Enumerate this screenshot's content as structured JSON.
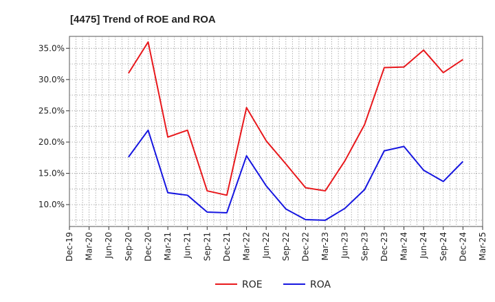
{
  "chart_data": {
    "type": "line",
    "title": "[4475]  Trend of ROE and ROA",
    "xlabel": "",
    "ylabel": "",
    "x": [
      "Dec-19",
      "Mar-20",
      "Jun-20",
      "Sep-20",
      "Dec-20",
      "Mar-21",
      "Jun-21",
      "Sep-21",
      "Dec-21",
      "Mar-22",
      "Jun-22",
      "Sep-22",
      "Dec-22",
      "Mar-23",
      "Jun-23",
      "Sep-23",
      "Dec-23",
      "Mar-24",
      "Jun-24",
      "Sep-24",
      "Dec-24",
      "Mar-25"
    ],
    "ylim": [
      6.5,
      36.9
    ],
    "yticks": [
      10.0,
      15.0,
      20.0,
      25.0,
      30.0,
      35.0
    ],
    "ytick_labels": [
      "10.0%",
      "15.0%",
      "20.0%",
      "25.0%",
      "30.0%",
      "35.0%"
    ],
    "grid": true,
    "legend_position": "bottom",
    "series": [
      {
        "name": "ROE",
        "color": "#e8171b",
        "values": [
          null,
          null,
          null,
          31.0,
          36.0,
          20.8,
          21.9,
          12.2,
          11.5,
          25.5,
          20.2,
          16.5,
          12.7,
          12.2,
          17.0,
          22.8,
          31.9,
          32.0,
          34.7,
          31.1,
          33.2,
          null
        ]
      },
      {
        "name": "ROA",
        "color": "#1515e0",
        "values": [
          null,
          null,
          null,
          17.6,
          21.9,
          11.9,
          11.5,
          8.8,
          8.7,
          17.8,
          13.0,
          9.3,
          7.6,
          7.5,
          9.4,
          12.4,
          18.6,
          19.3,
          15.5,
          13.7,
          16.9,
          null
        ]
      }
    ]
  }
}
